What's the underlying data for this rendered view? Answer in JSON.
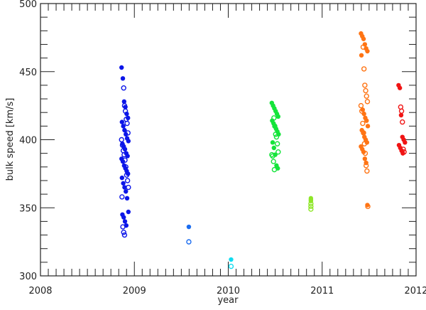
{
  "chart_data": {
    "type": "scatter",
    "title": "",
    "xlabel": "year",
    "ylabel": "bulk speed [km/s]",
    "xlim": [
      2008,
      2012
    ],
    "ylim": [
      300,
      500
    ],
    "xticks": [
      "2008",
      "2009",
      "2010",
      "2011",
      "2012"
    ],
    "yticks": [
      "300",
      "350",
      "400",
      "450",
      "500"
    ],
    "x_minor_per_major": 12,
    "y_minor_step": 10,
    "grid": false,
    "marker_styles": [
      "filled circle",
      "open circle"
    ],
    "series": [
      {
        "year": 2008.9,
        "color": "#0c16e8",
        "filled": [
          453,
          445,
          428,
          424,
          419,
          416,
          413,
          410,
          407,
          404,
          401,
          399,
          397,
          395,
          393,
          390,
          388,
          386,
          384,
          381,
          379,
          377,
          375,
          372,
          368,
          365,
          362,
          357,
          347,
          345,
          343,
          340,
          337
        ],
        "open": [
          438,
          425,
          421,
          415,
          412,
          405,
          400,
          396,
          392,
          389,
          385,
          380,
          374,
          370,
          365,
          358,
          336,
          332,
          330
        ]
      },
      {
        "year": 2009.58,
        "color": "#1a6cf0",
        "filled": [
          336
        ],
        "open": [
          325
        ]
      },
      {
        "year": 2010.03,
        "color": "#10dcf0",
        "filled": [
          312
        ],
        "open": [
          307
        ]
      },
      {
        "year": 2010.5,
        "color": "#14e43a",
        "filled": [
          427,
          425,
          423,
          421,
          419,
          417,
          414,
          412,
          410,
          408,
          406,
          404,
          398,
          394,
          389,
          381,
          379
        ],
        "open": [
          416,
          410,
          404,
          402,
          397,
          391,
          389,
          388,
          384,
          378
        ]
      },
      {
        "year": 2010.88,
        "color": "#8ee628",
        "filled": [
          357,
          356,
          355
        ],
        "open": [
          353,
          351,
          349
        ]
      },
      {
        "year": 2011.45,
        "color": "#ff7414",
        "filled": [
          478,
          476,
          474,
          470,
          467,
          465,
          462,
          422,
          419,
          416,
          414,
          410,
          407,
          405,
          402,
          400,
          398,
          395,
          393,
          391,
          386,
          383,
          352
        ],
        "open": [
          468,
          452,
          440,
          436,
          432,
          428,
          425,
          421,
          412,
          405,
          397,
          390,
          381,
          377,
          351
        ]
      },
      {
        "year": 2011.85,
        "color": "#f01414",
        "filled": [
          440,
          438,
          418,
          402,
          400,
          398,
          396,
          394,
          392,
          390
        ],
        "open": [
          424,
          421,
          413,
          393,
          391
        ]
      }
    ]
  }
}
